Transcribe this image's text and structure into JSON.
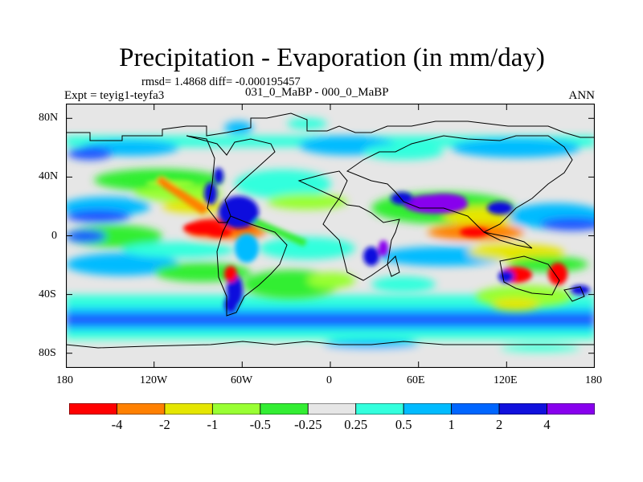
{
  "title": "Precipitation - Evaporation (in mm/day)",
  "stats": "rmsd= 1.4868 diff= -0.000195457",
  "experiment": "Expt = teyig1-teyfa3",
  "case": "031_0_MaBP - 000_0_MaBP",
  "season": "ANN",
  "map": {
    "x_ticks": [
      "180",
      "120W",
      "60W",
      "0",
      "60E",
      "120E",
      "180"
    ],
    "y_ticks": [
      "80N",
      "40N",
      "0",
      "40S",
      "80S"
    ],
    "background_color": "#e6e6e6"
  },
  "colorbar": {
    "colors": [
      "#ff0000",
      "#ff8000",
      "#e5e600",
      "#99ff33",
      "#33ee33",
      "#e6e6e6",
      "#33ffdd",
      "#00bbff",
      "#0066ff",
      "#1111dd",
      "#8800ee"
    ],
    "labels": [
      "-4",
      "-2",
      "-1",
      "-0.5",
      "-0.25",
      "0.25",
      "0.5",
      "1",
      "2",
      "4"
    ]
  }
}
